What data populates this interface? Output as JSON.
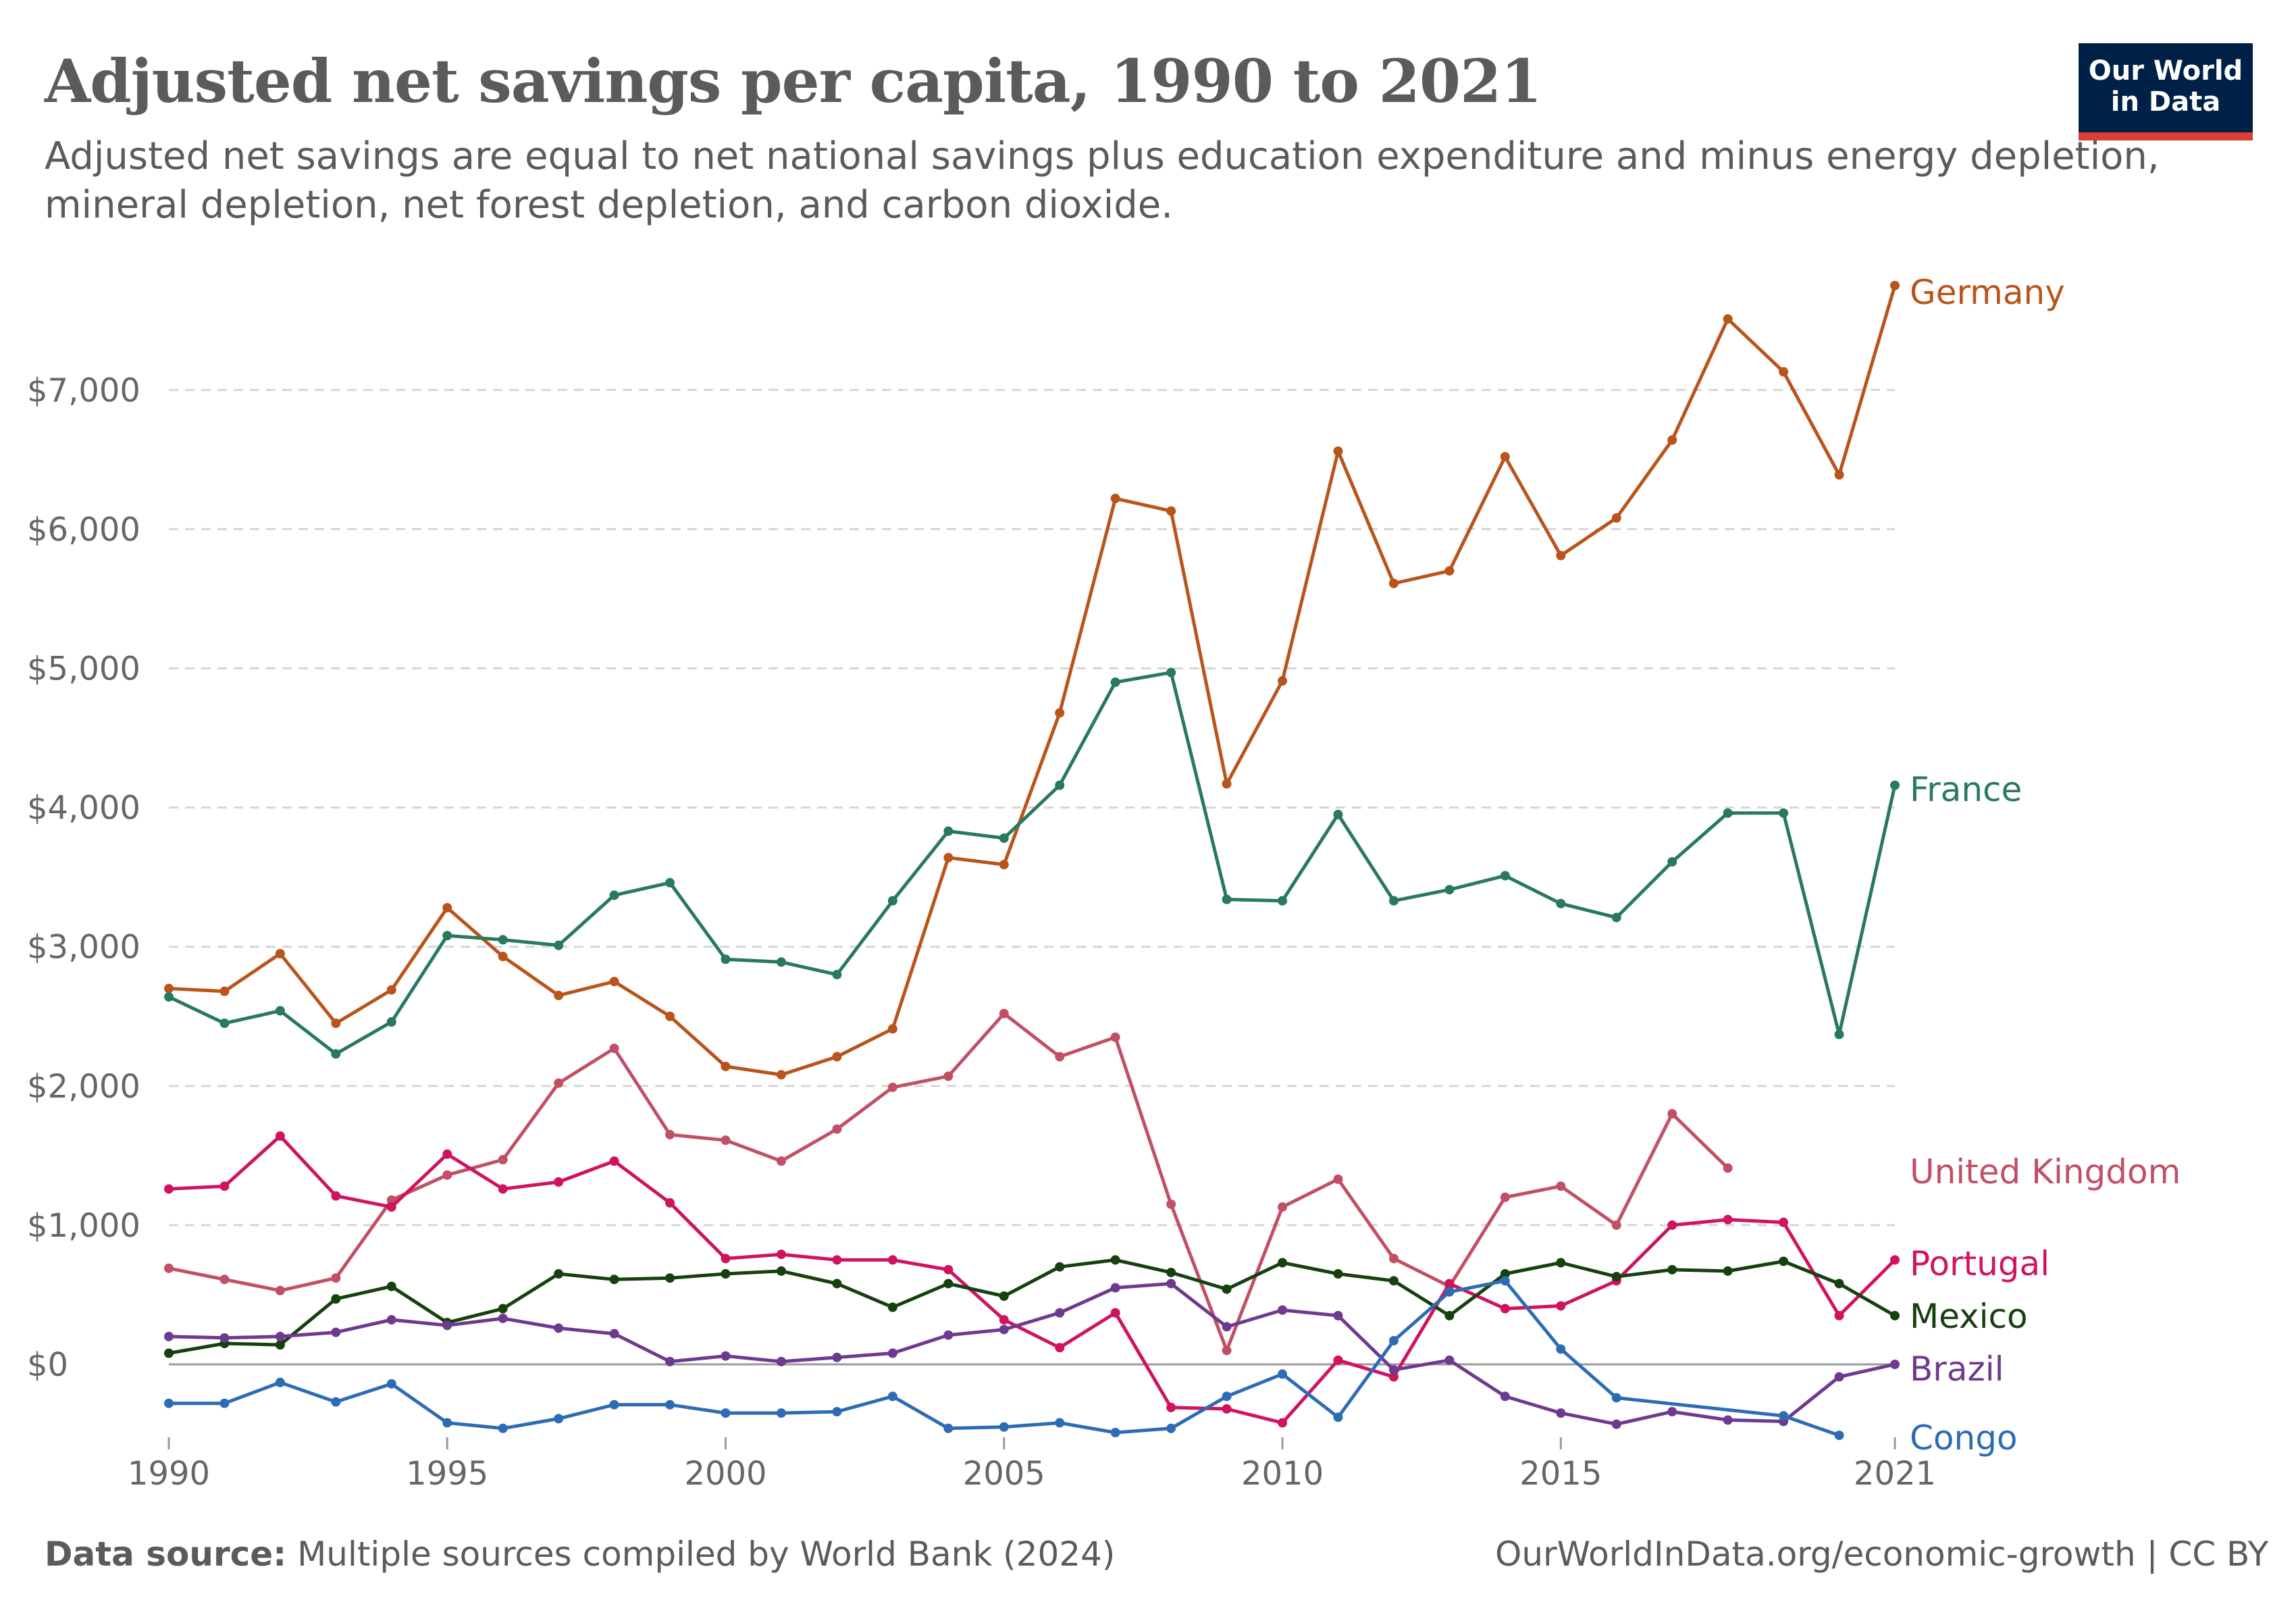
{
  "header": {
    "title": "Adjusted net savings per capita, 1990 to 2021",
    "subtitle": "Adjusted net savings are equal to net national savings plus education expenditure and minus energy depletion, mineral depletion, net forest depletion, and carbon dioxide."
  },
  "logo": {
    "text": "Our World\nin Data",
    "bg": "#002147",
    "accent": "#dc3d34"
  },
  "footer": {
    "source_label": "Data source:",
    "source_text": "Multiple sources compiled by World Bank (2024)",
    "right_text": "OurWorldInData.org/economic-growth | CC BY"
  },
  "chart_data": {
    "type": "line",
    "title": "Adjusted net savings per capita, 1990 to 2021",
    "xlabel": "",
    "ylabel": "",
    "xlim": [
      1990,
      2021
    ],
    "ylim": [
      -500,
      7700
    ],
    "grid": true,
    "legend": "right (direct labels)",
    "x_ticks": [
      {
        "value": 1990,
        "label": "1990"
      },
      {
        "value": 1995,
        "label": "1995"
      },
      {
        "value": 2000,
        "label": "2000"
      },
      {
        "value": 2005,
        "label": "2005"
      },
      {
        "value": 2010,
        "label": "2010"
      },
      {
        "value": 2015,
        "label": "2015"
      },
      {
        "value": 2021,
        "label": "2021"
      }
    ],
    "y_ticks": [
      {
        "value": 0,
        "label": "$0"
      },
      {
        "value": 1000,
        "label": "$1,000"
      },
      {
        "value": 2000,
        "label": "$2,000"
      },
      {
        "value": 3000,
        "label": "$3,000"
      },
      {
        "value": 4000,
        "label": "$4,000"
      },
      {
        "value": 5000,
        "label": "$5,000"
      },
      {
        "value": 6000,
        "label": "$6,000"
      },
      {
        "value": 7000,
        "label": "$7,000"
      }
    ],
    "series": [
      {
        "name": "Germany",
        "color": "#b9541b",
        "points": [
          [
            1990,
            2700
          ],
          [
            1991,
            2680
          ],
          [
            1992,
            2950
          ],
          [
            1993,
            2450
          ],
          [
            1994,
            2690
          ],
          [
            1995,
            3280
          ],
          [
            1996,
            2930
          ],
          [
            1997,
            2650
          ],
          [
            1998,
            2750
          ],
          [
            1999,
            2500
          ],
          [
            2000,
            2140
          ],
          [
            2001,
            2080
          ],
          [
            2002,
            2210
          ],
          [
            2003,
            2410
          ],
          [
            2004,
            3640
          ],
          [
            2005,
            3590
          ],
          [
            2006,
            4680
          ],
          [
            2007,
            6220
          ],
          [
            2008,
            6130
          ],
          [
            2009,
            4170
          ],
          [
            2010,
            4910
          ],
          [
            2011,
            6560
          ],
          [
            2012,
            5610
          ],
          [
            2013,
            5700
          ],
          [
            2014,
            6520
          ],
          [
            2015,
            5810
          ],
          [
            2016,
            6080
          ],
          [
            2017,
            6640
          ],
          [
            2018,
            7510
          ],
          [
            2019,
            7130
          ],
          [
            2020,
            6390
          ],
          [
            2021,
            7750
          ]
        ]
      },
      {
        "name": "France",
        "color": "#28795e",
        "points": [
          [
            1990,
            2640
          ],
          [
            1991,
            2450
          ],
          [
            1992,
            2540
          ],
          [
            1993,
            2230
          ],
          [
            1994,
            2460
          ],
          [
            1995,
            3080
          ],
          [
            1996,
            3050
          ],
          [
            1997,
            3010
          ],
          [
            1998,
            3370
          ],
          [
            1999,
            3460
          ],
          [
            2000,
            2910
          ],
          [
            2001,
            2890
          ],
          [
            2002,
            2800
          ],
          [
            2003,
            3330
          ],
          [
            2004,
            3830
          ],
          [
            2005,
            3780
          ],
          [
            2006,
            4160
          ],
          [
            2007,
            4900
          ],
          [
            2008,
            4970
          ],
          [
            2009,
            3340
          ],
          [
            2010,
            3330
          ],
          [
            2011,
            3950
          ],
          [
            2012,
            3330
          ],
          [
            2013,
            3410
          ],
          [
            2014,
            3510
          ],
          [
            2015,
            3310
          ],
          [
            2016,
            3210
          ],
          [
            2017,
            3610
          ],
          [
            2018,
            3960
          ],
          [
            2019,
            3960
          ],
          [
            2020,
            2370
          ],
          [
            2021,
            4160
          ]
        ]
      },
      {
        "name": "United Kingdom",
        "color": "#c15065",
        "points": [
          [
            1990,
            690
          ],
          [
            1991,
            610
          ],
          [
            1992,
            530
          ],
          [
            1993,
            620
          ],
          [
            1994,
            1180
          ],
          [
            1995,
            1360
          ],
          [
            1996,
            1470
          ],
          [
            1997,
            2020
          ],
          [
            1998,
            2270
          ],
          [
            1999,
            1650
          ],
          [
            2000,
            1610
          ],
          [
            2001,
            1460
          ],
          [
            2002,
            1690
          ],
          [
            2003,
            1990
          ],
          [
            2004,
            2070
          ],
          [
            2005,
            2520
          ],
          [
            2006,
            2210
          ],
          [
            2007,
            2350
          ],
          [
            2008,
            1150
          ],
          [
            2009,
            100
          ],
          [
            2010,
            1130
          ],
          [
            2011,
            1330
          ],
          [
            2012,
            760
          ],
          [
            2013,
            560
          ],
          [
            2014,
            1200
          ],
          [
            2015,
            1280
          ],
          [
            2016,
            1000
          ],
          [
            2017,
            1800
          ],
          [
            2018,
            1410
          ]
        ]
      },
      {
        "name": "Portugal",
        "color": "#d0135f",
        "points": [
          [
            1990,
            1260
          ],
          [
            1991,
            1280
          ],
          [
            1992,
            1640
          ],
          [
            1993,
            1210
          ],
          [
            1994,
            1130
          ],
          [
            1995,
            1510
          ],
          [
            1996,
            1260
          ],
          [
            1997,
            1310
          ],
          [
            1998,
            1460
          ],
          [
            1999,
            1160
          ],
          [
            2000,
            760
          ],
          [
            2001,
            790
          ],
          [
            2002,
            750
          ],
          [
            2003,
            750
          ],
          [
            2004,
            680
          ],
          [
            2005,
            320
          ],
          [
            2006,
            120
          ],
          [
            2007,
            370
          ],
          [
            2008,
            -310
          ],
          [
            2009,
            -320
          ],
          [
            2010,
            -420
          ],
          [
            2011,
            30
          ],
          [
            2012,
            -90
          ],
          [
            2013,
            580
          ],
          [
            2014,
            400
          ],
          [
            2015,
            420
          ],
          [
            2016,
            600
          ],
          [
            2017,
            1000
          ],
          [
            2018,
            1040
          ],
          [
            2019,
            1020
          ],
          [
            2020,
            350
          ],
          [
            2021,
            750
          ]
        ]
      },
      {
        "name": "Mexico",
        "color": "#16410f",
        "points": [
          [
            1990,
            80
          ],
          [
            1991,
            150
          ],
          [
            1992,
            140
          ],
          [
            1993,
            470
          ],
          [
            1994,
            560
          ],
          [
            1995,
            300
          ],
          [
            1996,
            400
          ],
          [
            1997,
            650
          ],
          [
            1998,
            610
          ],
          [
            1999,
            620
          ],
          [
            2000,
            650
          ],
          [
            2001,
            670
          ],
          [
            2002,
            580
          ],
          [
            2003,
            410
          ],
          [
            2004,
            580
          ],
          [
            2005,
            490
          ],
          [
            2006,
            700
          ],
          [
            2007,
            750
          ],
          [
            2008,
            660
          ],
          [
            2009,
            540
          ],
          [
            2010,
            730
          ],
          [
            2011,
            650
          ],
          [
            2012,
            600
          ],
          [
            2013,
            350
          ],
          [
            2014,
            650
          ],
          [
            2015,
            730
          ],
          [
            2016,
            630
          ],
          [
            2017,
            680
          ],
          [
            2018,
            670
          ],
          [
            2019,
            740
          ],
          [
            2020,
            580
          ],
          [
            2021,
            350
          ]
        ]
      },
      {
        "name": "Brazil",
        "color": "#6e3a8f",
        "points": [
          [
            1990,
            200
          ],
          [
            1991,
            190
          ],
          [
            1992,
            200
          ],
          [
            1993,
            230
          ],
          [
            1994,
            320
          ],
          [
            1995,
            280
          ],
          [
            1996,
            330
          ],
          [
            1997,
            260
          ],
          [
            1998,
            220
          ],
          [
            1999,
            20
          ],
          [
            2000,
            60
          ],
          [
            2001,
            20
          ],
          [
            2002,
            50
          ],
          [
            2003,
            80
          ],
          [
            2004,
            210
          ],
          [
            2005,
            250
          ],
          [
            2006,
            370
          ],
          [
            2007,
            550
          ],
          [
            2008,
            580
          ],
          [
            2009,
            270
          ],
          [
            2010,
            390
          ],
          [
            2011,
            350
          ],
          [
            2012,
            -40
          ],
          [
            2013,
            30
          ],
          [
            2014,
            -230
          ],
          [
            2015,
            -350
          ],
          [
            2016,
            -430
          ],
          [
            2017,
            -340
          ],
          [
            2018,
            -400
          ],
          [
            2019,
            -410
          ],
          [
            2020,
            -90
          ],
          [
            2021,
            0
          ]
        ]
      },
      {
        "name": "Congo",
        "color": "#2d6cb5",
        "points": [
          [
            1990,
            -280
          ],
          [
            1991,
            -280
          ],
          [
            1992,
            -130
          ],
          [
            1993,
            -270
          ],
          [
            1994,
            -140
          ],
          [
            1995,
            -420
          ],
          [
            1996,
            -460
          ],
          [
            1997,
            -390
          ],
          [
            1998,
            -290
          ],
          [
            1999,
            -290
          ],
          [
            2000,
            -350
          ],
          [
            2001,
            -350
          ],
          [
            2002,
            -340
          ],
          [
            2003,
            -230
          ],
          [
            2004,
            -460
          ],
          [
            2005,
            -450
          ],
          [
            2006,
            -420
          ],
          [
            2007,
            -490
          ],
          [
            2008,
            -460
          ],
          [
            2009,
            -230
          ],
          [
            2010,
            -70
          ],
          [
            2011,
            -380
          ],
          [
            2012,
            170
          ],
          [
            2013,
            520
          ],
          [
            2014,
            600
          ],
          [
            2015,
            110
          ],
          [
            2016,
            -240
          ],
          [
            2019,
            -370
          ],
          [
            2020,
            -510
          ]
        ]
      }
    ]
  }
}
